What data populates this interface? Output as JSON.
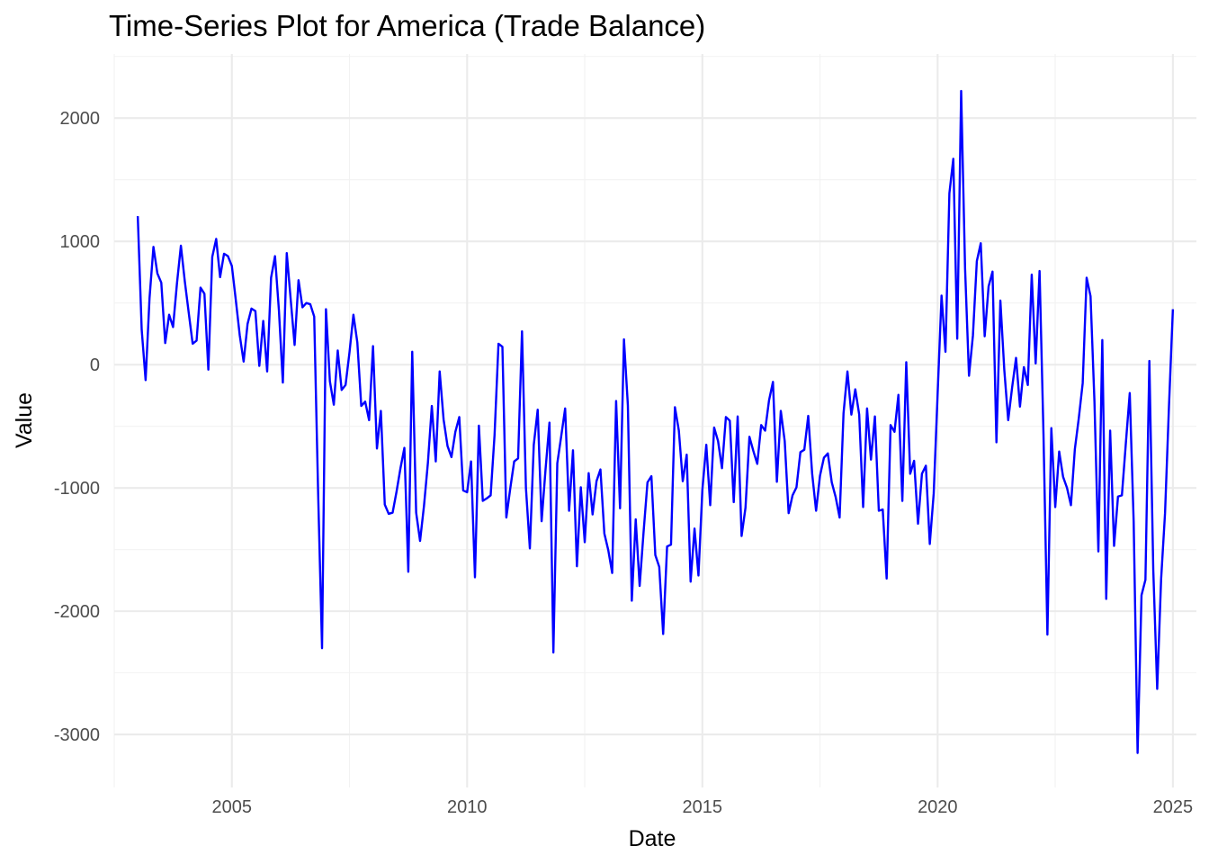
{
  "chart_data": {
    "type": "line",
    "title": "Time-Series Plot for America (Trade Balance)",
    "xlabel": "Date",
    "ylabel": "Value",
    "xlim": [
      2002.5,
      2025.5
    ],
    "ylim": [
      -3430,
      2520
    ],
    "x_ticks": [
      2005,
      2010,
      2015,
      2020,
      2025
    ],
    "x_tick_labels": [
      "2005",
      "2010",
      "2015",
      "2020",
      "2025"
    ],
    "y_ticks": [
      -3000,
      -2000,
      -1000,
      0,
      1000,
      2000
    ],
    "y_tick_labels": [
      "-3000",
      "-2000",
      "-1000",
      "0",
      "1000",
      "2000"
    ],
    "grid": true,
    "legend": "none",
    "line_color": "#0000ff",
    "series": [
      {
        "x": [
          "2003-01",
          "2003-02",
          "2003-03",
          "2003-04",
          "2003-05",
          "2003-06",
          "2003-07",
          "2003-08",
          "2003-09",
          "2003-10",
          "2003-11",
          "2003-12",
          "2004-01",
          "2004-02",
          "2004-03",
          "2004-04",
          "2004-05",
          "2004-06",
          "2004-07",
          "2004-08",
          "2004-09",
          "2004-10",
          "2004-11",
          "2004-12",
          "2005-01",
          "2005-02",
          "2005-03",
          "2005-04",
          "2005-05",
          "2005-06",
          "2005-07",
          "2005-08",
          "2005-09",
          "2005-10",
          "2005-11",
          "2005-12",
          "2006-01",
          "2006-02",
          "2006-03",
          "2006-04",
          "2006-05",
          "2006-06",
          "2006-07",
          "2006-08",
          "2006-09",
          "2006-10",
          "2006-11",
          "2006-12",
          "2007-01",
          "2007-02",
          "2007-03",
          "2007-04",
          "2007-05",
          "2007-06",
          "2007-07",
          "2007-08",
          "2007-09",
          "2007-10",
          "2007-11",
          "2007-12",
          "2008-01",
          "2008-02",
          "2008-03",
          "2008-04",
          "2008-05",
          "2008-06",
          "2008-07",
          "2008-08",
          "2008-09",
          "2008-10",
          "2008-11",
          "2008-12",
          "2009-01",
          "2009-02",
          "2009-03",
          "2009-04",
          "2009-05",
          "2009-06",
          "2009-07",
          "2009-08",
          "2009-09",
          "2009-10",
          "2009-11",
          "2009-12",
          "2010-01",
          "2010-02",
          "2010-03",
          "2010-04",
          "2010-05",
          "2010-06",
          "2010-07",
          "2010-08",
          "2010-09",
          "2010-10",
          "2010-11",
          "2010-12",
          "2011-01",
          "2011-02",
          "2011-03",
          "2011-04",
          "2011-05",
          "2011-06",
          "2011-07",
          "2011-08",
          "2011-09",
          "2011-10",
          "2011-11",
          "2011-12",
          "2012-01",
          "2012-02",
          "2012-03",
          "2012-04",
          "2012-05",
          "2012-06",
          "2012-07",
          "2012-08",
          "2012-09",
          "2012-10",
          "2012-11",
          "2012-12",
          "2013-01",
          "2013-02",
          "2013-03",
          "2013-04",
          "2013-05",
          "2013-06",
          "2013-07",
          "2013-08",
          "2013-09",
          "2013-10",
          "2013-11",
          "2013-12",
          "2014-01",
          "2014-02",
          "2014-03",
          "2014-04",
          "2014-05",
          "2014-06",
          "2014-07",
          "2014-08",
          "2014-09",
          "2014-10",
          "2014-11",
          "2014-12",
          "2015-01",
          "2015-02",
          "2015-03",
          "2015-04",
          "2015-05",
          "2015-06",
          "2015-07",
          "2015-08",
          "2015-09",
          "2015-10",
          "2015-11",
          "2015-12",
          "2016-01",
          "2016-02",
          "2016-03",
          "2016-04",
          "2016-05",
          "2016-06",
          "2016-07",
          "2016-08",
          "2016-09",
          "2016-10",
          "2016-11",
          "2016-12",
          "2017-01",
          "2017-02",
          "2017-03",
          "2017-04",
          "2017-05",
          "2017-06",
          "2017-07",
          "2017-08",
          "2017-09",
          "2017-10",
          "2017-11",
          "2017-12",
          "2018-01",
          "2018-02",
          "2018-03",
          "2018-04",
          "2018-05",
          "2018-06",
          "2018-07",
          "2018-08",
          "2018-09",
          "2018-10",
          "2018-11",
          "2018-12",
          "2019-01",
          "2019-02",
          "2019-03",
          "2019-04",
          "2019-05",
          "2019-06",
          "2019-07",
          "2019-08",
          "2019-09",
          "2019-10",
          "2019-11",
          "2019-12",
          "2020-01",
          "2020-02",
          "2020-03",
          "2020-04",
          "2020-05",
          "2020-06",
          "2020-07",
          "2020-08",
          "2020-09",
          "2020-10",
          "2020-11",
          "2020-12",
          "2021-01",
          "2021-02",
          "2021-03",
          "2021-04",
          "2021-05",
          "2021-06",
          "2021-07",
          "2021-08",
          "2021-09",
          "2021-10",
          "2021-11",
          "2021-12",
          "2022-01",
          "2022-02",
          "2022-03",
          "2022-04",
          "2022-05",
          "2022-06",
          "2022-07",
          "2022-08",
          "2022-09",
          "2022-10",
          "2022-11",
          "2022-12",
          "2023-01",
          "2023-02",
          "2023-03",
          "2023-04",
          "2023-05",
          "2023-06",
          "2023-07",
          "2023-08",
          "2023-09",
          "2023-10",
          "2023-11",
          "2023-12",
          "2024-01",
          "2024-02",
          "2024-03",
          "2024-04",
          "2024-05",
          "2024-06",
          "2024-07",
          "2024-08",
          "2024-09",
          "2024-10",
          "2024-11",
          "2024-12",
          "2025-01"
        ],
        "values": [
          1205,
          285,
          -125,
          540,
          955,
          740,
          665,
          175,
          405,
          305,
          660,
          965,
          675,
          420,
          170,
          195,
          625,
          575,
          -40,
          875,
          1020,
          710,
          900,
          880,
          800,
          525,
          240,
          25,
          330,
          455,
          435,
          -10,
          355,
          -55,
          705,
          880,
          440,
          -145,
          905,
          530,
          160,
          685,
          465,
          500,
          490,
          390,
          -1040,
          -2300,
          450,
          -135,
          -325,
          115,
          -205,
          -165,
          100,
          405,
          180,
          -335,
          -300,
          -450,
          150,
          -680,
          -375,
          -1135,
          -1210,
          -1200,
          -1030,
          -840,
          -675,
          -1680,
          105,
          -1200,
          -1430,
          -1145,
          -795,
          -335,
          -785,
          -55,
          -445,
          -660,
          -750,
          -545,
          -425,
          -1020,
          -1035,
          -785,
          -1725,
          -495,
          -1105,
          -1085,
          -1060,
          -570,
          170,
          145,
          -1240,
          -1005,
          -785,
          -760,
          270,
          -1000,
          -1490,
          -650,
          -365,
          -1270,
          -850,
          -470,
          -2335,
          -800,
          -580,
          -355,
          -1185,
          -695,
          -1635,
          -995,
          -1440,
          -880,
          -1215,
          -945,
          -850,
          -1370,
          -1505,
          -1690,
          -295,
          -1165,
          205,
          -330,
          -1915,
          -1255,
          -1795,
          -1360,
          -955,
          -905,
          -1545,
          -1640,
          -2185,
          -1475,
          -1460,
          -345,
          -535,
          -945,
          -730,
          -1760,
          -1330,
          -1710,
          -1015,
          -650,
          -1140,
          -510,
          -620,
          -840,
          -425,
          -455,
          -1115,
          -420,
          -1390,
          -1160,
          -585,
          -700,
          -805,
          -490,
          -535,
          -290,
          -140,
          -950,
          -375,
          -620,
          -1205,
          -1060,
          -995,
          -710,
          -690,
          -415,
          -885,
          -1185,
          -900,
          -755,
          -720,
          -955,
          -1075,
          -1240,
          -395,
          -55,
          -405,
          -200,
          -405,
          -1155,
          -355,
          -770,
          -420,
          -1185,
          -1175,
          -1735,
          -490,
          -545,
          -245,
          -1105,
          20,
          -885,
          -780,
          -1290,
          -885,
          -820,
          -1455,
          -1045,
          -235,
          560,
          105,
          1390,
          1670,
          210,
          2220,
          780,
          -90,
          235,
          840,
          985,
          230,
          635,
          755,
          -630,
          520,
          -40,
          -450,
          -185,
          55,
          -340,
          -20,
          -165,
          730,
          10,
          760,
          -565,
          -2190,
          -515,
          -1155,
          -705,
          -910,
          -1000,
          -1140,
          -685,
          -435,
          -150,
          705,
          555,
          -300,
          -1515,
          200,
          -1900,
          -535,
          -1470,
          -1070,
          -1060,
          -640,
          -230,
          -1275,
          -3150,
          -1870,
          -1745,
          30,
          -1665,
          -2630,
          -1740,
          -1205,
          -340,
          450
        ]
      }
    ]
  }
}
